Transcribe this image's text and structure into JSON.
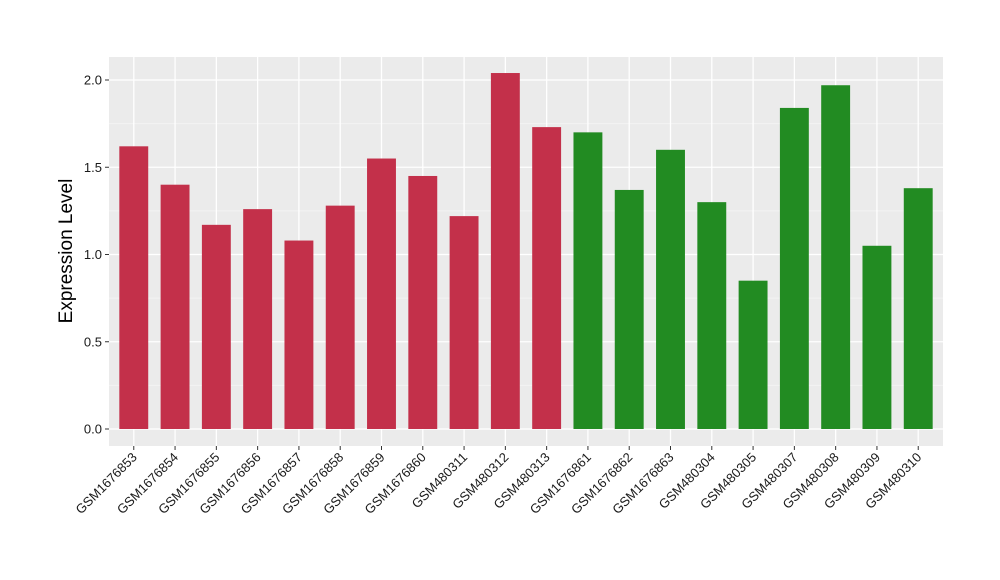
{
  "chart_data": {
    "type": "bar",
    "title": "",
    "xlabel": "",
    "ylabel": "Expression Level",
    "ylim": [
      -0.1,
      2.15
    ],
    "yticks": [
      0.0,
      0.5,
      1.0,
      1.5,
      2.0
    ],
    "ytick_labels": [
      "0.0",
      "0.5",
      "1.0",
      "1.5",
      "2.0"
    ],
    "grid": true,
    "legend": "none",
    "colors": {
      "group_a": "#C3304A",
      "group_b": "#228B22",
      "panel_background": "#EBEBEB",
      "grid_major": "#FFFFFF",
      "grid_minor": "#F3F3F3"
    },
    "categories": [
      "GSM1676853",
      "GSM1676854",
      "GSM1676855",
      "GSM1676856",
      "GSM1676857",
      "GSM1676858",
      "GSM1676859",
      "GSM1676860",
      "GSM480311",
      "GSM480312",
      "GSM480313",
      "GSM1676861",
      "GSM1676862",
      "GSM1676863",
      "GSM480304",
      "GSM480305",
      "GSM480307",
      "GSM480308",
      "GSM480309",
      "GSM480310"
    ],
    "values": [
      1.62,
      1.4,
      1.17,
      1.26,
      1.08,
      1.28,
      1.55,
      1.45,
      1.22,
      2.04,
      1.73,
      1.7,
      1.37,
      1.6,
      1.3,
      0.85,
      1.84,
      1.97,
      1.05,
      1.38
    ],
    "groups": [
      "a",
      "a",
      "a",
      "a",
      "a",
      "a",
      "a",
      "a",
      "a",
      "a",
      "a",
      "b",
      "b",
      "b",
      "b",
      "b",
      "b",
      "b",
      "b",
      "b"
    ]
  }
}
